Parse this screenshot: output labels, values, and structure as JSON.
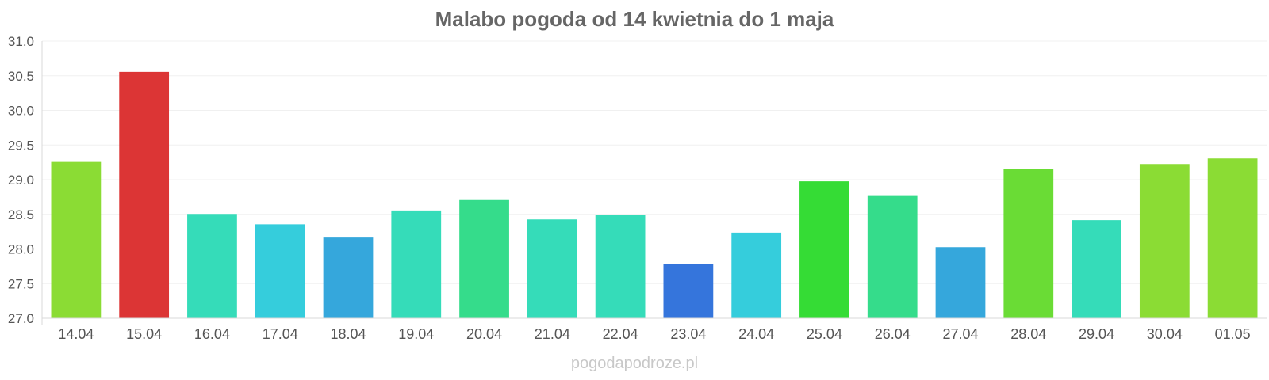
{
  "chart_data": {
    "type": "bar",
    "title": "Malabo pogoda od 14 kwietnia do 1 maja",
    "xlabel": "",
    "ylabel": "",
    "ylim": [
      27.0,
      31.0
    ],
    "yticks": [
      "27.0",
      "27.5",
      "28.0",
      "28.5",
      "29.0",
      "29.5",
      "30.0",
      "30.5",
      "31.0"
    ],
    "grid": true,
    "categories": [
      "14.04",
      "15.04",
      "16.04",
      "17.04",
      "18.04",
      "19.04",
      "20.04",
      "21.04",
      "22.04",
      "23.04",
      "24.04",
      "25.04",
      "26.04",
      "27.04",
      "28.04",
      "29.04",
      "30.04",
      "01.05"
    ],
    "values": [
      29.25,
      30.55,
      28.5,
      28.35,
      28.17,
      28.55,
      28.7,
      28.42,
      28.48,
      27.78,
      28.23,
      28.97,
      28.77,
      28.02,
      29.15,
      28.41,
      29.22,
      29.3
    ],
    "colors": [
      "#8bdc34",
      "#dc3535",
      "#35dcb9",
      "#35cddc",
      "#35a7dc",
      "#35dcb9",
      "#35dc8b",
      "#35dcb9",
      "#35dcb9",
      "#3575dc",
      "#35cddc",
      "#35dc35",
      "#35dc8b",
      "#35a7dc",
      "#6adc35",
      "#35dcb9",
      "#8bdc34",
      "#8bdc34"
    ]
  },
  "watermark": "pogodapodroze.pl"
}
